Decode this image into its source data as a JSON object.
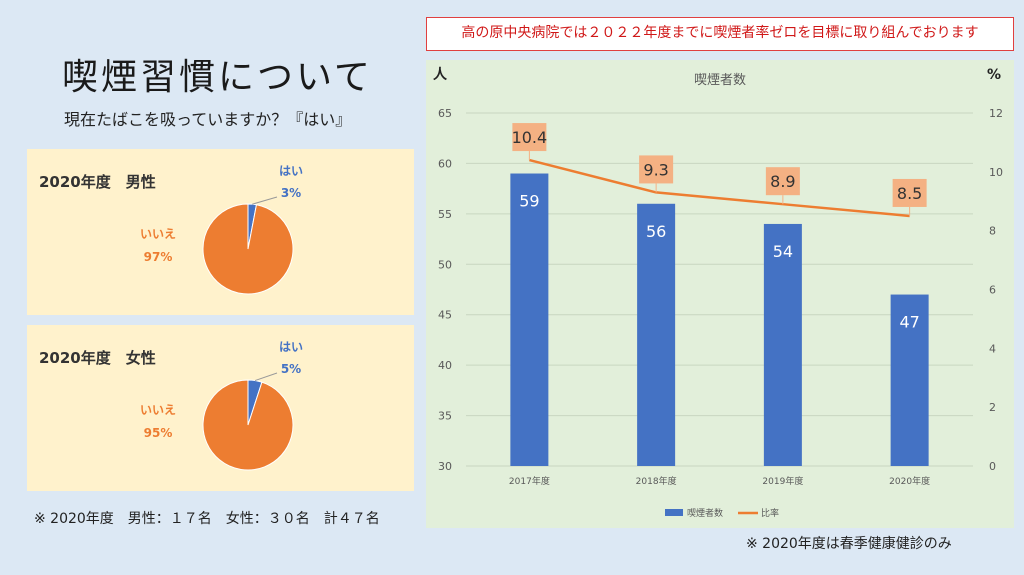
{
  "page": {
    "title": "喫煙習慣について",
    "subtitle": "現在たばこを吸っていますか？『はい』",
    "banner": "高の原中央病院では２０２２年度までに喫煙者率ゼロを目標に取り組んでおります",
    "footnote_left": "※ 2020年度　男性：１７名　女性：３０名　計４７名",
    "footnote_right": "※ 2020年度は春季健康健診のみ"
  },
  "colors": {
    "yes": "#4472c4",
    "no": "#ed7d31",
    "panel": "#fff2cc",
    "chart_bg": "#e2efda",
    "label_box": "#f4b183"
  },
  "chart_data": [
    {
      "type": "pie",
      "title": "2020年度　男性",
      "slices": [
        {
          "label": "はい",
          "pct_label": "3%",
          "value": 3,
          "color": "#4472c4"
        },
        {
          "label": "いいえ",
          "pct_label": "97%",
          "value": 97,
          "color": "#ed7d31"
        }
      ]
    },
    {
      "type": "pie",
      "title": "2020年度　女性",
      "slices": [
        {
          "label": "はい",
          "pct_label": "5%",
          "value": 5,
          "color": "#4472c4"
        },
        {
          "label": "いいえ",
          "pct_label": "95%",
          "value": 95,
          "color": "#ed7d31"
        }
      ]
    },
    {
      "type": "bar",
      "title": "喫煙者数",
      "categories": [
        "2017年度",
        "2018年度",
        "2019年度",
        "2020年度"
      ],
      "series": [
        {
          "name": "喫煙者数",
          "type": "bar",
          "axis": "left",
          "color": "#4472c4",
          "values": [
            59,
            56,
            54,
            47
          ]
        },
        {
          "name": "比率",
          "type": "line",
          "axis": "right",
          "color": "#ed7d31",
          "values": [
            10.4,
            9.3,
            8.9,
            8.5
          ]
        }
      ],
      "ylabel_left": "人",
      "ylabel_right": "%",
      "ylim_left": [
        30,
        65
      ],
      "ylim_right": [
        0,
        12
      ],
      "yticks_left": [
        30,
        35,
        40,
        45,
        50,
        55,
        60,
        65
      ],
      "yticks_right": [
        0,
        2,
        4,
        6,
        8,
        10,
        12
      ],
      "grid": true,
      "legend_position": "bottom"
    }
  ]
}
